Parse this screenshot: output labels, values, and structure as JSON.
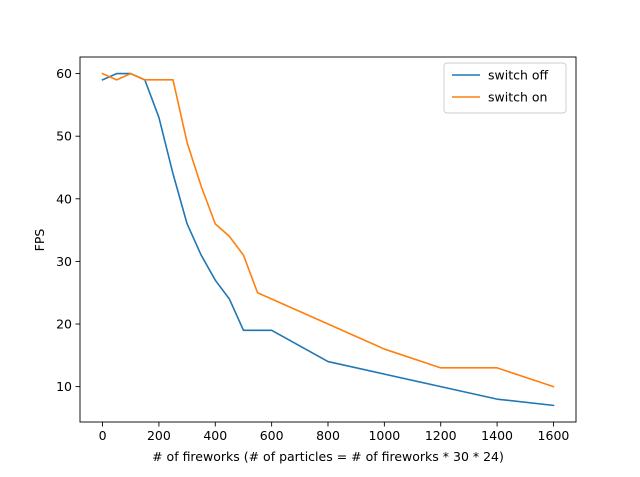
{
  "chart_data": {
    "type": "line",
    "title": "",
    "xlabel": "# of fireworks (# of particles = # of fireworks * 30 * 24)",
    "ylabel": "FPS",
    "xlim": [
      -80,
      1680
    ],
    "ylim": [
      4.35,
      62.65
    ],
    "xticks": [
      0,
      200,
      400,
      600,
      800,
      1000,
      1200,
      1400,
      1600
    ],
    "yticks": [
      10,
      20,
      30,
      40,
      50,
      60
    ],
    "grid": false,
    "legend_position": "top-right",
    "series": [
      {
        "name": "switch off",
        "color": "#1f77b4",
        "x": [
          0,
          50,
          100,
          150,
          200,
          250,
          300,
          350,
          400,
          450,
          500,
          550,
          600,
          800,
          1000,
          1200,
          1400,
          1600
        ],
        "y": [
          59,
          60,
          60,
          59,
          53,
          44,
          36,
          31,
          27,
          24,
          19,
          19,
          19,
          14,
          12,
          10,
          8,
          7
        ]
      },
      {
        "name": "switch on",
        "color": "#ff7f0e",
        "x": [
          0,
          50,
          100,
          150,
          200,
          250,
          300,
          350,
          400,
          450,
          500,
          550,
          600,
          800,
          1000,
          1200,
          1400,
          1600
        ],
        "y": [
          60,
          59,
          60,
          59,
          59,
          59,
          49,
          42,
          36,
          34,
          31,
          25,
          24,
          20,
          16,
          13,
          13,
          10
        ]
      }
    ]
  }
}
